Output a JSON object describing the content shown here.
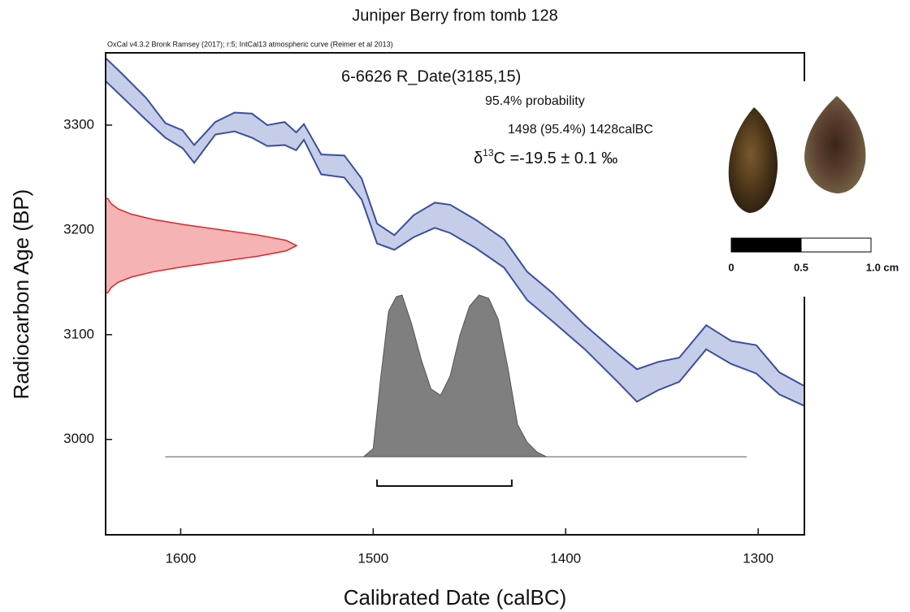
{
  "chart_data": {
    "type": "calibration",
    "title": "Juniper Berry from tomb 128",
    "subtitle": "OxCal v4.3.2 Bronk Ramsey (2017); r:5; IntCal13 atmospheric curve (Reimer et al 2013)",
    "x_label": "Calibrated Date (calBC)",
    "y_label": "Radiocarbon Age (BP)",
    "xlim": [
      1639,
      1276
    ],
    "ylim": [
      2909,
      3369
    ],
    "xticks": [
      1600,
      1500,
      1400,
      1300
    ],
    "yticks": [
      3000,
      3100,
      3200,
      3300
    ],
    "curve": {
      "color": "#3b4f9e",
      "fill": "#c6cde9",
      "x": [
        1639,
        1631,
        1618,
        1608,
        1599,
        1593,
        1582,
        1572,
        1563,
        1555,
        1546,
        1540,
        1536,
        1527,
        1515,
        1506,
        1498,
        1489,
        1479,
        1468,
        1460,
        1447,
        1432,
        1420,
        1407,
        1390,
        1373,
        1363,
        1352,
        1341,
        1327,
        1314,
        1301,
        1289,
        1276
      ],
      "upper": [
        3364,
        3350,
        3326,
        3302,
        3295,
        3281,
        3303,
        3312,
        3311,
        3300,
        3303,
        3293,
        3301,
        3272,
        3271,
        3249,
        3206,
        3195,
        3214,
        3226,
        3224,
        3210,
        3191,
        3160,
        3140,
        3109,
        3082,
        3067,
        3074,
        3078,
        3109,
        3094,
        3090,
        3064,
        3051
      ],
      "lower": [
        3342,
        3328,
        3305,
        3288,
        3278,
        3264,
        3291,
        3294,
        3288,
        3280,
        3281,
        3276,
        3286,
        3253,
        3250,
        3229,
        3187,
        3181,
        3193,
        3202,
        3197,
        3183,
        3164,
        3133,
        3113,
        3086,
        3055,
        3036,
        3047,
        3055,
        3086,
        3072,
        3063,
        3043,
        3032
      ]
    },
    "radiocarbon": {
      "color": "#d9262a",
      "fill": "#f5b3b3",
      "bp": [
        3140,
        3145,
        3150,
        3155,
        3160,
        3165,
        3170,
        3175,
        3180,
        3185,
        3190,
        3195,
        3200,
        3205,
        3210,
        3215,
        3220,
        3225,
        3230
      ],
      "probability": [
        0.011,
        0.029,
        0.066,
        0.135,
        0.249,
        0.411,
        0.607,
        0.801,
        0.946,
        1,
        0.946,
        0.801,
        0.607,
        0.411,
        0.249,
        0.135,
        0.066,
        0.029,
        0.011
      ]
    },
    "calibrated": {
      "color": "#7f7f7f",
      "x": [
        1608,
        1505,
        1500,
        1496,
        1492,
        1488,
        1485,
        1480,
        1475,
        1470,
        1465,
        1460,
        1455,
        1450,
        1445,
        1440,
        1435,
        1430,
        1425,
        1420,
        1415,
        1410,
        1306
      ],
      "probability": [
        0,
        0,
        0.05,
        0.5,
        0.9,
        0.99,
        1,
        0.82,
        0.6,
        0.42,
        0.38,
        0.5,
        0.75,
        0.93,
        1,
        0.98,
        0.85,
        0.55,
        0.2,
        0.09,
        0.03,
        0,
        0
      ]
    },
    "range": {
      "values": [
        1498,
        1428
      ]
    },
    "annotations": {
      "sample": "6-6626 R_Date(3185,15)",
      "probability": "95.4% probability",
      "interval": "1498 (95.4%) 1428calBC",
      "delta": {
        "symbol": "δ",
        "sup": "13",
        "text": "C =-19.5 ± 0.1 ‰"
      }
    },
    "scale_bar": {
      "ticks": [
        0,
        0.5,
        {
          "value": 1.0,
          "label": "1.0 cm"
        }
      ]
    }
  }
}
